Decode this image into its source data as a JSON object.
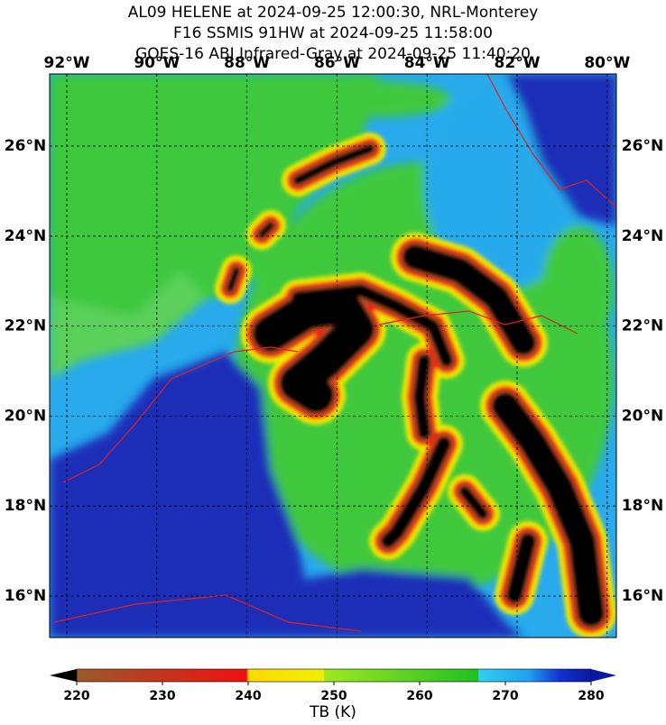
{
  "header": {
    "lines": [
      "AL09 HELENE at 2024-09-25 12:00:30, NRL-Monterey",
      "F16 SSMIS 91HW at 2024-09-25 11:58:00",
      "GOES-16 ABI Infrared-Gray at 2024-09-25 11:40:20"
    ]
  },
  "map": {
    "lon_labels": [
      "92°W",
      "90°W",
      "88°W",
      "86°W",
      "84°W",
      "82°W",
      "80°W"
    ],
    "lat_labels": [
      "26°N",
      "24°N",
      "22°N",
      "20°N",
      "18°N",
      "16°N"
    ]
  },
  "colorbar": {
    "lim": [
      220,
      280
    ],
    "ticks": [
      220,
      230,
      240,
      250,
      260,
      270,
      280
    ],
    "label": "TB (K)"
  }
}
